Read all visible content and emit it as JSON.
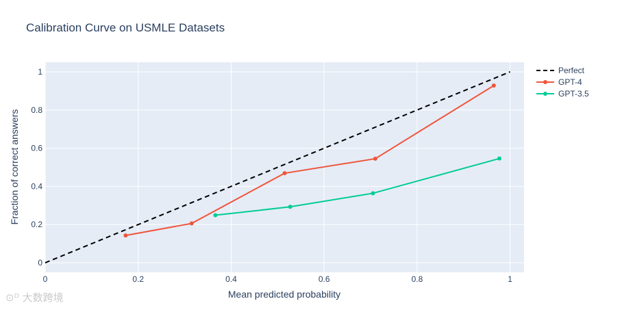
{
  "chart_data": {
    "type": "line",
    "title": "Calibration Curve on USMLE Datasets",
    "xlabel": "Mean predicted probability",
    "ylabel": "Fraction of correct answers",
    "xlim": [
      0,
      1.03
    ],
    "ylim": [
      -0.05,
      1.05
    ],
    "xticks": [
      0,
      0.2,
      0.4,
      0.6,
      0.8,
      1
    ],
    "yticks": [
      0,
      0.2,
      0.4,
      0.6,
      0.8,
      1
    ],
    "xtick_labels": [
      "0",
      "0.2",
      "0.4",
      "0.6",
      "0.8",
      "1"
    ],
    "ytick_labels": [
      "0",
      "0.2",
      "0.4",
      "0.6",
      "0.8",
      "1"
    ],
    "grid": true,
    "legend_position": "top-right",
    "series": [
      {
        "name": "Perfect",
        "color": "#000000",
        "dash": "dash",
        "markers": false,
        "x": [
          0,
          1
        ],
        "y": [
          0,
          1
        ]
      },
      {
        "name": "GPT-4",
        "color": "#EF553B",
        "dash": "solid",
        "markers": true,
        "x": [
          0.173,
          0.315,
          0.515,
          0.71,
          0.965
        ],
        "y": [
          0.143,
          0.206,
          0.469,
          0.545,
          0.928
        ]
      },
      {
        "name": "GPT-3.5",
        "color": "#00CC96",
        "dash": "solid",
        "markers": true,
        "x": [
          0.366,
          0.527,
          0.705,
          0.977
        ],
        "y": [
          0.249,
          0.293,
          0.364,
          0.546
        ]
      }
    ]
  },
  "colors": {
    "plot_bg": "#E5ECF6",
    "grid": "#ffffff",
    "text": "#2a3f5f"
  },
  "watermark": "大数跨境"
}
